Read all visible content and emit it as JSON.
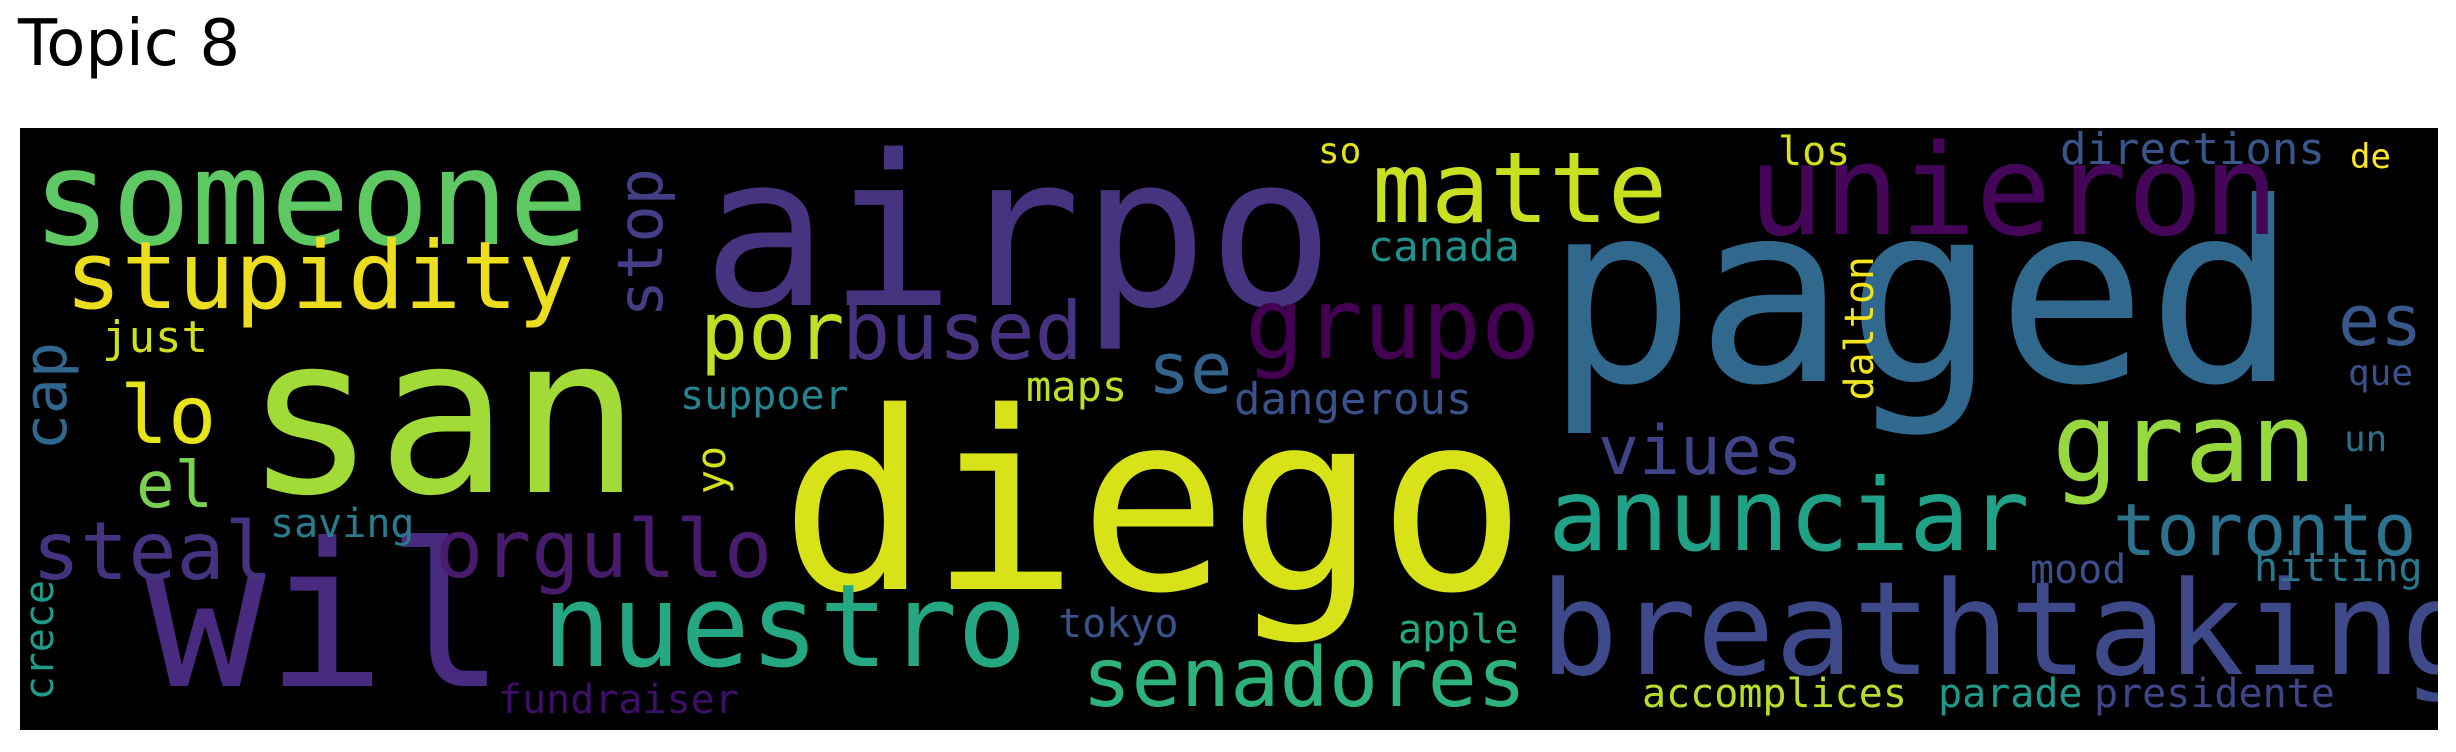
{
  "title": "Topic 8",
  "words": [
    {
      "text": "diego",
      "color": "#d8e219"
    },
    {
      "text": "paged",
      "color": "#31688e"
    },
    {
      "text": "san",
      "color": "#a2da37"
    },
    {
      "text": "airpo",
      "color": "#463480"
    },
    {
      "text": "wil",
      "color": "#482a7e"
    },
    {
      "text": "breathtaking",
      "color": "#3e4989"
    },
    {
      "text": "someone",
      "color": "#5ec962"
    },
    {
      "text": "unieron",
      "color": "#450559"
    },
    {
      "text": "nuestro",
      "color": "#26a784"
    },
    {
      "text": "stupidity",
      "color": "#ecdd1e"
    },
    {
      "text": "matte",
      "color": "#c8e020"
    },
    {
      "text": "gran",
      "color": "#97d83f"
    },
    {
      "text": "anunciar",
      "color": "#1fa287"
    },
    {
      "text": "senadores",
      "color": "#2db27d"
    },
    {
      "text": "grupo",
      "color": "#440154"
    },
    {
      "text": "bused",
      "color": "#46327e"
    },
    {
      "text": "orgullo",
      "color": "#481b6d"
    },
    {
      "text": "steal",
      "color": "#46337f"
    },
    {
      "text": "toronto",
      "color": "#2c728e"
    },
    {
      "text": "viues",
      "color": "#404387"
    },
    {
      "text": "por",
      "color": "#c0df25"
    },
    {
      "text": "lo",
      "color": "#e7e419"
    },
    {
      "text": "se",
      "color": "#33638d"
    },
    {
      "text": "es",
      "color": "#38588c"
    },
    {
      "text": "stop",
      "color": "#433e85"
    },
    {
      "text": "cap",
      "color": "#31678e"
    },
    {
      "text": "el",
      "color": "#7ad151"
    },
    {
      "text": "just",
      "color": "#d0e11c"
    },
    {
      "text": "canada",
      "color": "#21918c"
    },
    {
      "text": "dangerous",
      "color": "#3b518b"
    },
    {
      "text": "maps",
      "color": "#bddf26"
    },
    {
      "text": "suppoer",
      "color": "#25848e"
    },
    {
      "text": "saving",
      "color": "#297b8e"
    },
    {
      "text": "yo",
      "color": "#d5e21a"
    },
    {
      "text": "tokyo",
      "color": "#3a538b"
    },
    {
      "text": "apple",
      "color": "#22a884"
    },
    {
      "text": "fundraiser",
      "color": "#3d0f67"
    },
    {
      "text": "crece",
      "color": "#1e9b8a"
    },
    {
      "text": "so",
      "color": "#e2e418"
    },
    {
      "text": "los",
      "color": "#d5e21a"
    },
    {
      "text": "dalton",
      "color": "#f1e51d"
    },
    {
      "text": "directions",
      "color": "#39568c"
    },
    {
      "text": "de",
      "color": "#fde725"
    },
    {
      "text": "que",
      "color": "#3b518b"
    },
    {
      "text": "un",
      "color": "#2d708e"
    },
    {
      "text": "mood",
      "color": "#3d4e8a"
    },
    {
      "text": "hitting",
      "color": "#2a788e"
    },
    {
      "text": "accomplices",
      "color": "#b8de29"
    },
    {
      "text": "parade",
      "color": "#1f998a"
    },
    {
      "text": "presidente",
      "color": "#404588"
    }
  ]
}
